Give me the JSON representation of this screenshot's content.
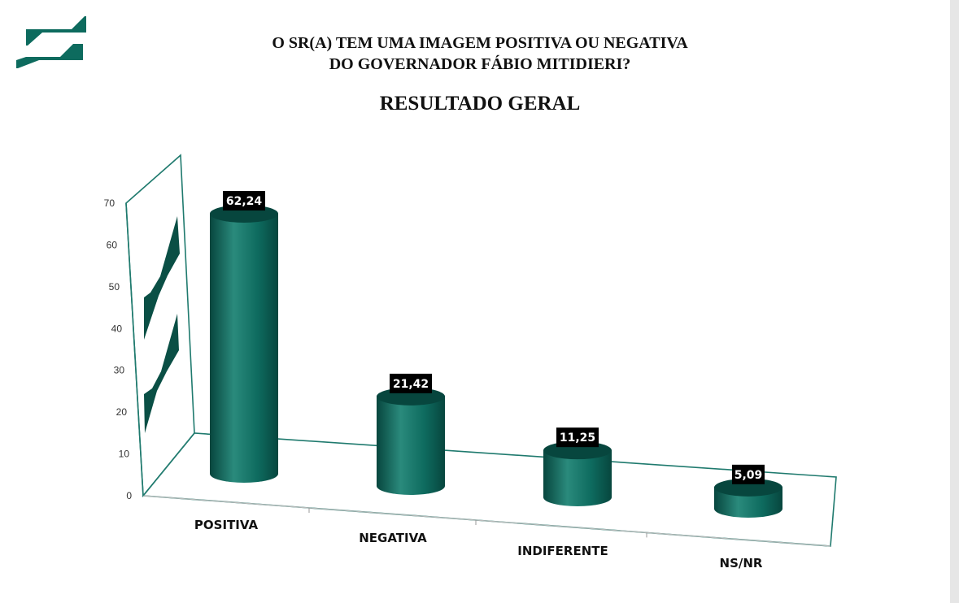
{
  "header": {
    "title_line1": "O SR(A) TEM UMA IMAGEM POSITIVA OU NEGATIVA",
    "title_line2": "DO GOVERNADOR FÁBIO MITIDIERI?",
    "subtitle": "RESULTADO GERAL"
  },
  "colors": {
    "bar": "#0e6b5f",
    "bar_dark": "#07463e",
    "bar_light": "#2a8a7c",
    "axis": "#1f7a6e",
    "label_bg": "#000000"
  },
  "chart_data": {
    "type": "bar",
    "title": "RESULTADO GERAL",
    "categories": [
      "POSITIVA",
      "NEGATIVA",
      "INDIFERENTE",
      "NS/NR"
    ],
    "values": [
      62.24,
      21.42,
      11.25,
      5.09
    ],
    "value_labels": [
      "62,24",
      "21,42",
      "11,25",
      "5,09"
    ],
    "ylim": [
      0,
      70
    ],
    "yticks": [
      0,
      10,
      20,
      30,
      40,
      50,
      60,
      70
    ],
    "grid": false,
    "legend": "none",
    "style": "3d-cylinder"
  }
}
